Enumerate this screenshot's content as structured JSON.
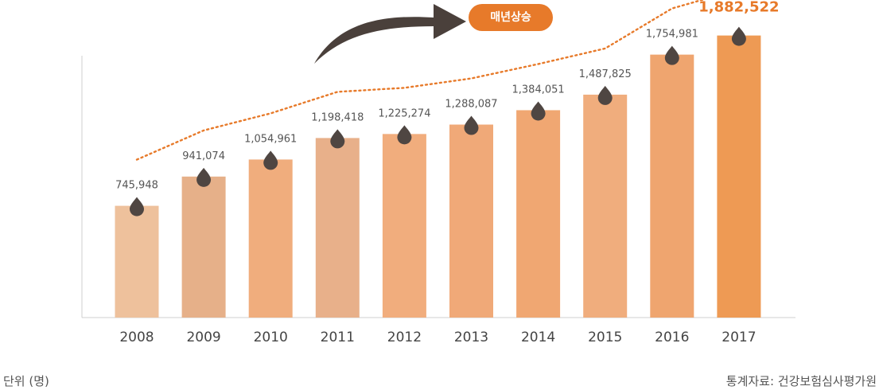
{
  "chart_data": {
    "type": "bar",
    "categories": [
      "2008",
      "2009",
      "2010",
      "2011",
      "2012",
      "2013",
      "2014",
      "2015",
      "2016",
      "2017"
    ],
    "values": [
      745948,
      941074,
      1054961,
      1198418,
      1225274,
      1288087,
      1384051,
      1487825,
      1754981,
      1882522
    ],
    "value_labels": [
      "745,948",
      "941,074",
      "1,054,961",
      "1,198,418",
      "1,225,274",
      "1,288,087",
      "1,384,051",
      "1,487,825",
      "1,754,981",
      "1,882,522"
    ],
    "ylim": [
      0,
      2000000
    ],
    "highlight_index": 9,
    "bar_colors": [
      "#eec19c",
      "#e6b089",
      "#f0ad7d",
      "#e8b08a",
      "#f1ad7d",
      "#f0a978",
      "#f0a772",
      "#f0ad7d",
      "#efa56f",
      "#ee9a54"
    ],
    "highlight_label_color": "#e77a2a",
    "trend_color": "#e77a2a",
    "marker_color": "#4f4642",
    "arrow_color": "#4a403b",
    "grid": false
  },
  "trend_badge": "매년상승",
  "unit_label": "단위 (명)",
  "source_label": "통계자료: 건강보험심사평가원"
}
